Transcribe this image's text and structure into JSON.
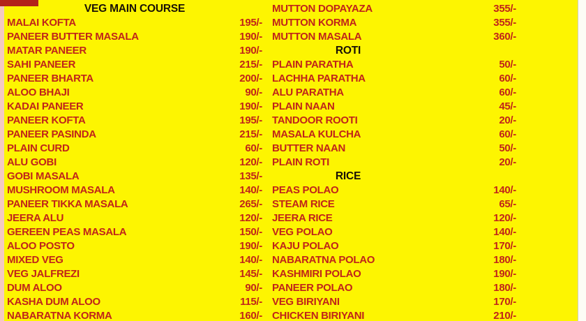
{
  "colors": {
    "background": "#fdf501",
    "item_text": "#c0241a",
    "header_text": "#1a1206",
    "top_left_block": "#b3231a",
    "left_edge_strip": "#f4c9c2",
    "right_edge_strip": "#fcfcf5"
  },
  "menu": {
    "left_column": {
      "rows": [
        {
          "type": "header",
          "label": "VEG MAIN COURSE"
        },
        {
          "type": "item",
          "name": "MALAI KOFTA",
          "price": "195/-"
        },
        {
          "type": "item",
          "name": "PANEER BUTTER MASALA",
          "price": "190/-"
        },
        {
          "type": "item",
          "name": "MATAR PANEER",
          "price": "190/-"
        },
        {
          "type": "item",
          "name": "SAHI PANEER",
          "price": "215/-"
        },
        {
          "type": "item",
          "name": "PANEER BHARTA",
          "price": "200/-"
        },
        {
          "type": "item",
          "name": "ALOO BHAJI",
          "price": "90/-"
        },
        {
          "type": "item",
          "name": "KADAI PANEER",
          "price": "190/-"
        },
        {
          "type": "item",
          "name": "PANEER KOFTA",
          "price": "195/-"
        },
        {
          "type": "item",
          "name": "PANEER PASINDA",
          "price": "215/-"
        },
        {
          "type": "item",
          "name": "PLAIN CURD",
          "price": "60/-"
        },
        {
          "type": "item",
          "name": "ALU GOBI",
          "price": "120/-"
        },
        {
          "type": "item",
          "name": "GOBI MASALA",
          "price": "135/-"
        },
        {
          "type": "item",
          "name": "MUSHROOM MASALA",
          "price": "140/-"
        },
        {
          "type": "item",
          "name": "PANEER TIKKA MASALA",
          "price": "265/-"
        },
        {
          "type": "item",
          "name": "JEERA ALU",
          "price": "120/-"
        },
        {
          "type": "item",
          "name": "GEREEN PEAS MASALA",
          "price": "150/-"
        },
        {
          "type": "item",
          "name": "ALOO POSTO",
          "price": "190/-"
        },
        {
          "type": "item",
          "name": "MIXED VEG",
          "price": "140/-"
        },
        {
          "type": "item",
          "name": "VEG JALFREZI",
          "price": "145/-"
        },
        {
          "type": "item",
          "name": "DUM ALOO",
          "price": "90/-"
        },
        {
          "type": "item",
          "name": "KASHA DUM ALOO",
          "price": "115/-"
        },
        {
          "type": "item",
          "name": "NABARATNA KORMA",
          "price": "160/-"
        }
      ]
    },
    "right_column": {
      "rows": [
        {
          "type": "item",
          "name": "MUTTON DOPAYAZA",
          "price": "355/-"
        },
        {
          "type": "item",
          "name": "MUTTON KORMA",
          "price": "355/-"
        },
        {
          "type": "item",
          "name": "MUTTON MASALA",
          "price": "360/-"
        },
        {
          "type": "header",
          "label": "ROTI"
        },
        {
          "type": "item",
          "name": "PLAIN PARATHA",
          "price": "50/-"
        },
        {
          "type": "item",
          "name": "LACHHA PARATHA",
          "price": "60/-"
        },
        {
          "type": "item",
          "name": "ALU PARATHA",
          "price": "60/-"
        },
        {
          "type": "item",
          "name": "PLAIN NAAN",
          "price": "45/-"
        },
        {
          "type": "item",
          "name": "TANDOOR ROOTI",
          "price": "20/-"
        },
        {
          "type": "item",
          "name": "MASALA KULCHA",
          "price": "60/-"
        },
        {
          "type": "item",
          "name": "BUTTER NAAN",
          "price": "50/-"
        },
        {
          "type": "item",
          "name": "PLAIN ROTI",
          "price": "20/-"
        },
        {
          "type": "header",
          "label": "RICE"
        },
        {
          "type": "item",
          "name": "PEAS POLAO",
          "price": "140/-"
        },
        {
          "type": "item",
          "name": "STEAM RICE",
          "price": "65/-"
        },
        {
          "type": "item",
          "name": "JEERA RICE",
          "price": "120/-"
        },
        {
          "type": "item",
          "name": "VEG POLAO",
          "price": "140/-"
        },
        {
          "type": "item",
          "name": "KAJU POLAO",
          "price": "170/-"
        },
        {
          "type": "item",
          "name": "NABARATNA POLAO",
          "price": "180/-"
        },
        {
          "type": "item",
          "name": "KASHMIRI POLAO",
          "price": "190/-"
        },
        {
          "type": "item",
          "name": "PANEER POLAO",
          "price": "180/-"
        },
        {
          "type": "item",
          "name": "VEG BIRIYANI",
          "price": "170/-"
        },
        {
          "type": "item",
          "name": "CHICKEN BIRIYANI",
          "price": "210/-"
        }
      ]
    }
  }
}
